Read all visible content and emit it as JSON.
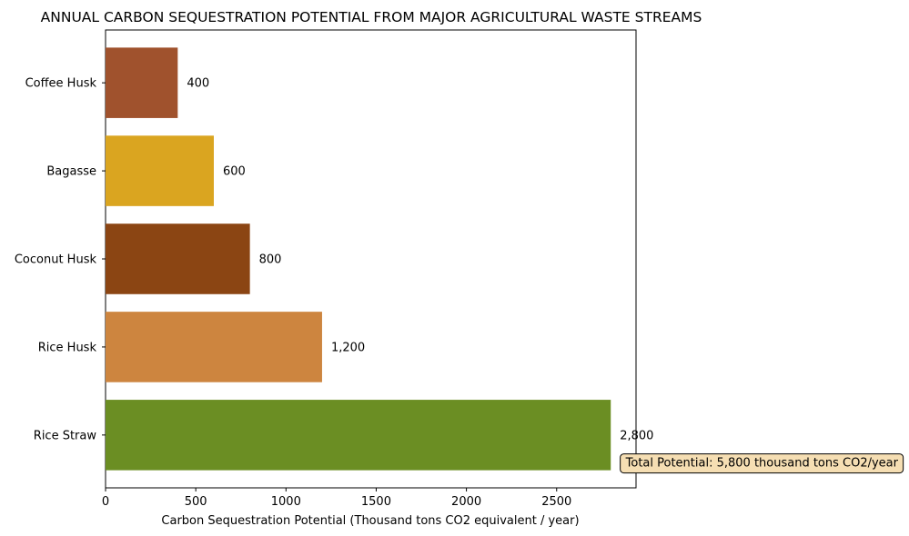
{
  "chart_data": {
    "type": "bar",
    "orientation": "horizontal",
    "title": "ANNUAL CARBON SEQUESTRATION POTENTIAL FROM MAJOR AGRICULTURAL WASTE STREAMS",
    "xlabel": "Carbon Sequestration Potential (Thousand tons CO2 equivalent / year)",
    "ylabel": "",
    "xlim": [
      0,
      2940
    ],
    "xticks": [
      0,
      500,
      1000,
      1500,
      2000,
      2500
    ],
    "xtick_labels": [
      "0",
      "500",
      "1000",
      "1500",
      "2000",
      "2500"
    ],
    "categories": [
      "Coffee Husk",
      "Bagasse",
      "Coconut Husk",
      "Rice Husk",
      "Rice Straw"
    ],
    "values": [
      400,
      600,
      800,
      1200,
      2800
    ],
    "value_labels": [
      "400",
      "600",
      "800",
      "1,200",
      "2,800"
    ],
    "colors": [
      "#a0522d",
      "#daa520",
      "#8b4513",
      "#cd853f",
      "#6b8e23"
    ],
    "annotation": {
      "text": "Total Potential: 5,800 thousand tons CO2/year",
      "position": "bottom-right",
      "background": "#f5deb3"
    },
    "grid": false,
    "legend": null
  }
}
